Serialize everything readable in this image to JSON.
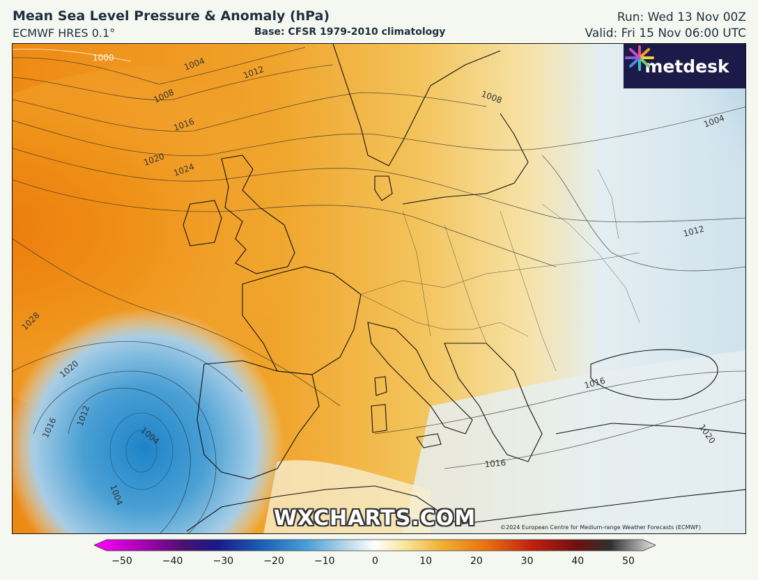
{
  "header": {
    "title": "Mean Sea Level Pressure & Anomaly (hPa)",
    "model": "ECMWF HRES 0.1°",
    "base": "Base: CFSR 1979-2010 climatology",
    "run": "Run: Wed 13 Nov 00Z",
    "valid": "Valid: Fri 15 Nov 06:00 UTC"
  },
  "map": {
    "region": "Europe",
    "isobar_labels": [
      "1000",
      "1004",
      "1008",
      "1012",
      "1016",
      "1020",
      "1024",
      "1028",
      "1020",
      "1016",
      "1012",
      "1004",
      "1004",
      "1004",
      "1008",
      "1012",
      "1016",
      "1016",
      "1020"
    ],
    "logo_text": "metdesk",
    "watermark": "WXCHARTS.COM",
    "copyright": "©2024 European Centre for Medium-range Weather Forecasts (ECMWF)",
    "colors": {
      "strong_positive": "#e8780e",
      "positive": "#efa020",
      "weak_positive": "#f4d070",
      "neutral": "#f8f3e0",
      "weak_negative": "#d9e8f0",
      "negative": "#8cbedc",
      "strong_negative": "#3a95cc"
    }
  },
  "colorbar": {
    "min": -50,
    "max": 50,
    "ticks": [
      "−50",
      "−40",
      "−30",
      "−20",
      "−10",
      "0",
      "10",
      "20",
      "30",
      "40",
      "50"
    ]
  }
}
